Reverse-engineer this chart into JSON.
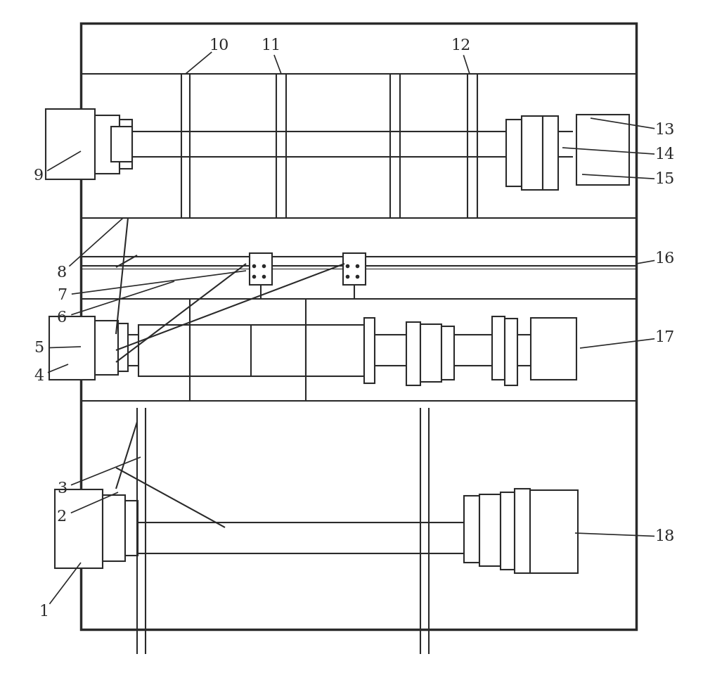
{
  "bg": "#ffffff",
  "lc": "#2a2a2a",
  "lw": 1.5,
  "lw2": 2.2,
  "fs": 16,
  "figsize": [
    10.0,
    9.57
  ]
}
